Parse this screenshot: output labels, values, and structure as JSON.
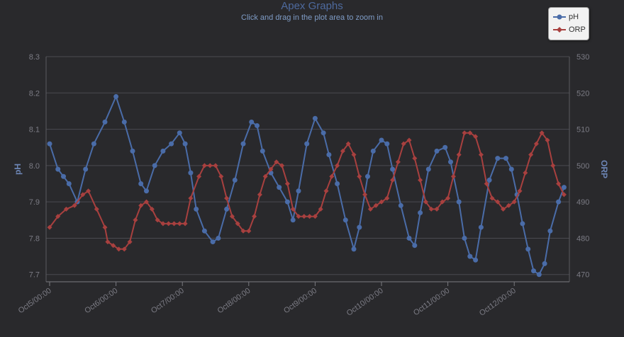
{
  "title": "Apex Graphs",
  "subtitle": "Click and drag in the plot area to zoom in",
  "colors": {
    "ph": "#4a6ca8",
    "orp": "#a8403f",
    "background": "#29292c",
    "grid": "#4a4a50"
  },
  "legend": {
    "placement": "top-right",
    "items": [
      {
        "label": "pH"
      },
      {
        "label": "ORP"
      }
    ]
  },
  "chart_data": {
    "type": "line",
    "x_unit": "hours",
    "x_start": "Oct5/00:00",
    "xlim": [
      0,
      188
    ],
    "x_ticks": [
      0,
      24,
      48,
      72,
      96,
      120,
      144,
      168
    ],
    "x_tick_labels": [
      "Oct5/00:00",
      "Oct6/00:00",
      "Oct7/00:00",
      "Oct8/00:00",
      "Oct9/00:00",
      "Oct10/00:00",
      "Oct11/00:00",
      "Oct12/00:00"
    ],
    "y_left": {
      "label": "pH",
      "min": 7.68,
      "max": 8.3,
      "ticks": [
        7.7,
        7.8,
        7.9,
        8.0,
        8.1,
        8.2,
        8.3
      ]
    },
    "y_right": {
      "label": "ORP",
      "min": 468,
      "max": 530,
      "ticks": [
        470,
        480,
        490,
        500,
        510,
        520,
        530
      ]
    },
    "grid": true,
    "series": [
      {
        "name": "pH",
        "axis": "left",
        "marker": "circle",
        "points": [
          [
            0,
            8.06
          ],
          [
            3,
            7.99
          ],
          [
            5,
            7.97
          ],
          [
            7,
            7.95
          ],
          [
            10,
            7.9
          ],
          [
            13,
            7.99
          ],
          [
            16,
            8.06
          ],
          [
            20,
            8.12
          ],
          [
            24,
            8.19
          ],
          [
            27,
            8.12
          ],
          [
            30,
            8.04
          ],
          [
            33,
            7.95
          ],
          [
            35,
            7.93
          ],
          [
            38,
            8.0
          ],
          [
            41,
            8.04
          ],
          [
            44,
            8.06
          ],
          [
            47,
            8.09
          ],
          [
            49,
            8.06
          ],
          [
            51,
            7.98
          ],
          [
            53,
            7.88
          ],
          [
            56,
            7.82
          ],
          [
            59,
            7.79
          ],
          [
            61,
            7.8
          ],
          [
            64,
            7.88
          ],
          [
            67,
            7.96
          ],
          [
            70,
            8.06
          ],
          [
            73,
            8.12
          ],
          [
            75,
            8.11
          ],
          [
            77,
            8.04
          ],
          [
            80,
            7.98
          ],
          [
            83,
            7.94
          ],
          [
            86,
            7.9
          ],
          [
            88,
            7.85
          ],
          [
            90,
            7.93
          ],
          [
            93,
            8.06
          ],
          [
            96,
            8.13
          ],
          [
            99,
            8.09
          ],
          [
            101,
            8.03
          ],
          [
            104,
            7.95
          ],
          [
            107,
            7.85
          ],
          [
            110,
            7.77
          ],
          [
            112,
            7.83
          ],
          [
            115,
            7.97
          ],
          [
            117,
            8.04
          ],
          [
            120,
            8.07
          ],
          [
            122,
            8.06
          ],
          [
            124,
            7.99
          ],
          [
            127,
            7.89
          ],
          [
            130,
            7.8
          ],
          [
            132,
            7.78
          ],
          [
            134,
            7.87
          ],
          [
            137,
            7.99
          ],
          [
            140,
            8.04
          ],
          [
            143,
            8.05
          ],
          [
            145,
            8.01
          ],
          [
            148,
            7.9
          ],
          [
            150,
            7.8
          ],
          [
            152,
            7.75
          ],
          [
            154,
            7.74
          ],
          [
            156,
            7.83
          ],
          [
            159,
            7.96
          ],
          [
            162,
            8.02
          ],
          [
            165,
            8.02
          ],
          [
            167,
            7.99
          ],
          [
            169,
            7.92
          ],
          [
            171,
            7.84
          ],
          [
            173,
            7.77
          ],
          [
            175,
            7.71
          ],
          [
            177,
            7.7
          ],
          [
            179,
            7.73
          ],
          [
            181,
            7.82
          ],
          [
            184,
            7.9
          ],
          [
            186,
            7.94
          ]
        ]
      },
      {
        "name": "ORP",
        "axis": "right",
        "marker": "diamond",
        "points": [
          [
            0,
            483
          ],
          [
            3,
            486
          ],
          [
            6,
            488
          ],
          [
            9,
            489
          ],
          [
            12,
            492
          ],
          [
            14,
            493
          ],
          [
            17,
            488
          ],
          [
            20,
            483
          ],
          [
            21,
            479
          ],
          [
            23,
            478
          ],
          [
            25,
            477
          ],
          [
            27,
            477
          ],
          [
            29,
            479
          ],
          [
            31,
            485
          ],
          [
            33,
            489
          ],
          [
            35,
            490
          ],
          [
            37,
            488
          ],
          [
            39,
            485
          ],
          [
            41,
            484
          ],
          [
            43,
            484
          ],
          [
            45,
            484
          ],
          [
            47,
            484
          ],
          [
            49,
            484
          ],
          [
            51,
            491
          ],
          [
            54,
            497
          ],
          [
            56,
            500
          ],
          [
            58,
            500
          ],
          [
            60,
            500
          ],
          [
            62,
            497
          ],
          [
            64,
            491
          ],
          [
            66,
            486
          ],
          [
            68,
            484
          ],
          [
            70,
            482
          ],
          [
            72,
            482
          ],
          [
            74,
            486
          ],
          [
            76,
            492
          ],
          [
            78,
            497
          ],
          [
            80,
            499
          ],
          [
            82,
            501
          ],
          [
            84,
            500
          ],
          [
            86,
            495
          ],
          [
            88,
            488
          ],
          [
            90,
            486
          ],
          [
            92,
            486
          ],
          [
            94,
            486
          ],
          [
            96,
            486
          ],
          [
            98,
            488
          ],
          [
            100,
            493
          ],
          [
            102,
            497
          ],
          [
            104,
            500
          ],
          [
            106,
            504
          ],
          [
            108,
            506
          ],
          [
            110,
            503
          ],
          [
            112,
            497
          ],
          [
            114,
            492
          ],
          [
            116,
            488
          ],
          [
            118,
            489
          ],
          [
            120,
            490
          ],
          [
            122,
            491
          ],
          [
            124,
            496
          ],
          [
            126,
            501
          ],
          [
            128,
            506
          ],
          [
            130,
            507
          ],
          [
            132,
            502
          ],
          [
            134,
            496
          ],
          [
            136,
            490
          ],
          [
            138,
            488
          ],
          [
            140,
            488
          ],
          [
            142,
            490
          ],
          [
            144,
            491
          ],
          [
            146,
            497
          ],
          [
            148,
            503
          ],
          [
            150,
            509
          ],
          [
            152,
            509
          ],
          [
            154,
            508
          ],
          [
            156,
            503
          ],
          [
            158,
            495
          ],
          [
            160,
            491
          ],
          [
            162,
            490
          ],
          [
            164,
            488
          ],
          [
            166,
            489
          ],
          [
            168,
            490
          ],
          [
            170,
            493
          ],
          [
            172,
            498
          ],
          [
            174,
            503
          ],
          [
            176,
            506
          ],
          [
            178,
            509
          ],
          [
            180,
            507
          ],
          [
            182,
            500
          ],
          [
            184,
            495
          ],
          [
            186,
            492
          ]
        ]
      }
    ]
  }
}
